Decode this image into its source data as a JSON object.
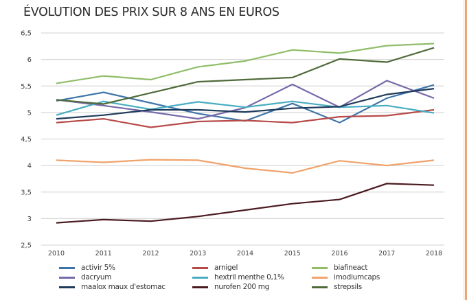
{
  "chart_data": {
    "type": "line",
    "title": "ÉVOLUTION DES PRIX SUR 8 ANS EN EUROS",
    "xlabel": "",
    "ylabel": "",
    "x": [
      "2010",
      "2011",
      "2012",
      "2013",
      "2014",
      "2015",
      "2016",
      "2017",
      "2018"
    ],
    "ylim": [
      2.5,
      6.5
    ],
    "yticks": [
      "2,5",
      "3",
      "3,5",
      "4",
      "4,5",
      "5",
      "5,5",
      "6",
      "6,5"
    ],
    "ytick_values": [
      2.5,
      3,
      3.5,
      4,
      4.5,
      5,
      5.5,
      6,
      6.5
    ],
    "grid": true,
    "legend_position": "bottom",
    "series": [
      {
        "name": "activir 5%",
        "color": "#3e75a8",
        "values": [
          5.22,
          5.38,
          5.18,
          4.98,
          4.84,
          5.17,
          4.81,
          5.27,
          5.52
        ]
      },
      {
        "name": "arnigel",
        "color": "#b74a48",
        "values": [
          4.81,
          4.88,
          4.72,
          4.83,
          4.85,
          4.81,
          4.92,
          4.94,
          5.05
        ]
      },
      {
        "name": "biafineact",
        "color": "#8fbd68",
        "values": [
          5.55,
          5.69,
          5.62,
          5.86,
          5.97,
          6.18,
          6.12,
          6.26,
          6.3
        ]
      },
      {
        "name": "dacryum",
        "color": "#7669a8",
        "values": [
          5.24,
          5.13,
          5.01,
          4.88,
          5.09,
          5.53,
          5.1,
          5.6,
          5.27
        ]
      },
      {
        "name": "hextril menthe 0,1%",
        "color": "#46adc0",
        "values": [
          4.95,
          5.21,
          5.06,
          5.2,
          5.1,
          5.21,
          5.1,
          5.13,
          4.99
        ]
      },
      {
        "name": "imodiumcaps",
        "color": "#f0a26a",
        "values": [
          4.1,
          4.06,
          4.11,
          4.1,
          3.95,
          3.86,
          4.09,
          4.0,
          4.1
        ]
      },
      {
        "name": "maalox maux d'estomac",
        "color": "#1f3b5a",
        "values": [
          4.88,
          4.95,
          5.05,
          5.05,
          5.01,
          5.08,
          5.11,
          5.34,
          5.45
        ]
      },
      {
        "name": "nurofen 200 mg",
        "color": "#4a1a20",
        "values": [
          2.92,
          2.98,
          2.95,
          3.04,
          3.16,
          3.28,
          3.36,
          3.66,
          3.63
        ]
      },
      {
        "name": "strepsils",
        "color": "#4f6b3a",
        "values": [
          5.24,
          5.16,
          5.37,
          5.58,
          5.62,
          5.66,
          6.01,
          5.95,
          6.22
        ]
      }
    ]
  }
}
